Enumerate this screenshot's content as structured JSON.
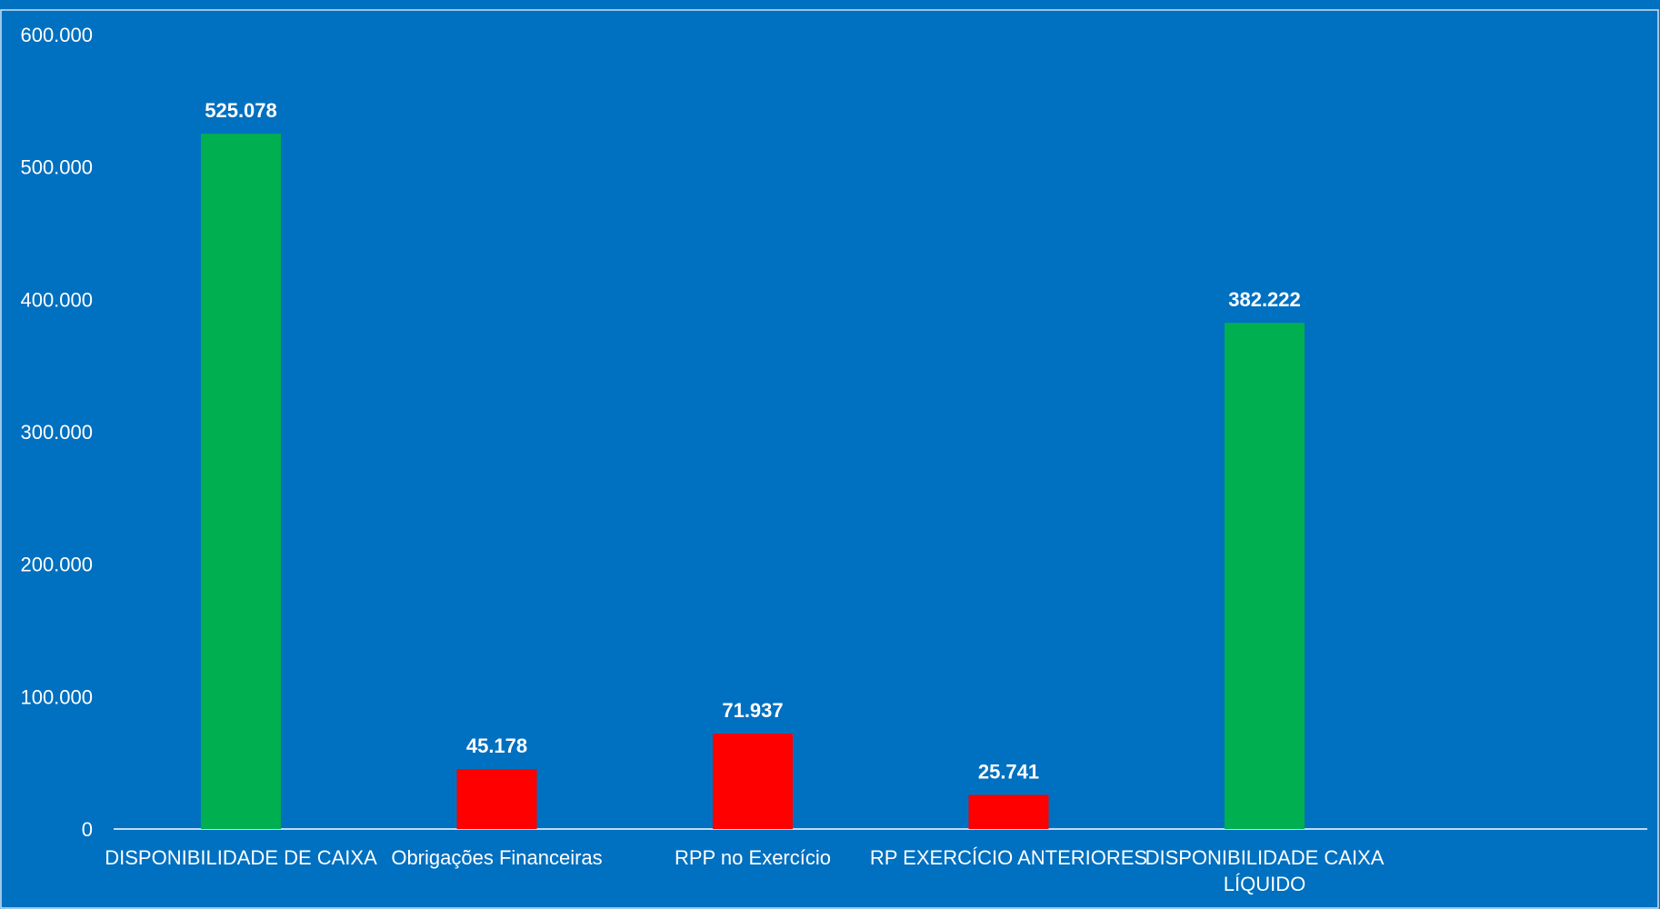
{
  "chart_data": {
    "type": "bar",
    "title": "",
    "xlabel": "",
    "ylabel": "",
    "ylim": [
      0,
      600000
    ],
    "yticks": [
      0,
      100000,
      200000,
      300000,
      400000,
      500000,
      600000
    ],
    "ytick_labels": [
      "0",
      "100.000",
      "200.000",
      "300.000",
      "400.000",
      "500.000",
      "600.000"
    ],
    "categories": [
      [
        "DISPONIBILIDADE DE CAIXA"
      ],
      [
        "Obrigações Financeiras"
      ],
      [
        "RPP no Exercício"
      ],
      [
        "RP  EXERCÍCIO ANTERIORES"
      ],
      [
        "DISPONIBILIDADE CAIXA",
        "LÍQUIDO"
      ]
    ],
    "values": [
      525078,
      45178,
      71937,
      25741,
      382222
    ],
    "value_labels": [
      "525.078",
      "45.178",
      "71.937",
      "25.741",
      "382.222"
    ],
    "bar_colors": [
      "#00B050",
      "#FF0000",
      "#FF0000",
      "#FF0000",
      "#00B050"
    ],
    "grid": false,
    "legend": "none"
  },
  "colors": {
    "background": "#0070C0",
    "axis": "#ffffff",
    "text": "#ffffff",
    "positive": "#00B050",
    "negative": "#FF0000"
  }
}
